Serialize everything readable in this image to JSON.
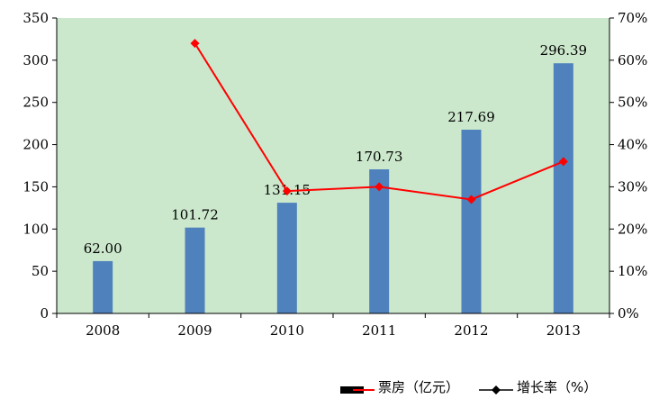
{
  "chart_data": {
    "type": "bar",
    "categories": [
      "2008",
      "2009",
      "2010",
      "2011",
      "2012",
      "2013"
    ],
    "series": [
      {
        "name": "票房（亿元）",
        "type": "bar",
        "axis": "left",
        "values": [
          62.0,
          101.72,
          131.15,
          170.73,
          217.69,
          296.39
        ],
        "labels": [
          "62.00",
          "101.72",
          "131.15",
          "170.73",
          "217.69",
          "296.39"
        ],
        "color": "#4f81bd"
      },
      {
        "name": "增长率（%）",
        "type": "line",
        "axis": "right",
        "values": [
          null,
          64,
          29,
          30,
          27,
          36
        ],
        "color": "#ff0000",
        "marker": "diamond"
      }
    ],
    "y_left": {
      "ylim": [
        0,
        350
      ],
      "ticks": [
        "0",
        "50",
        "100",
        "150",
        "200",
        "250",
        "300",
        "350"
      ]
    },
    "y_right": {
      "ylim": [
        0,
        70
      ],
      "ticks": [
        "0%",
        "10%",
        "20%",
        "30%",
        "40%",
        "50%",
        "60%",
        "70%"
      ]
    },
    "plot_background": "#cce8cc",
    "grid": false,
    "legend_position": "bottom-right"
  }
}
